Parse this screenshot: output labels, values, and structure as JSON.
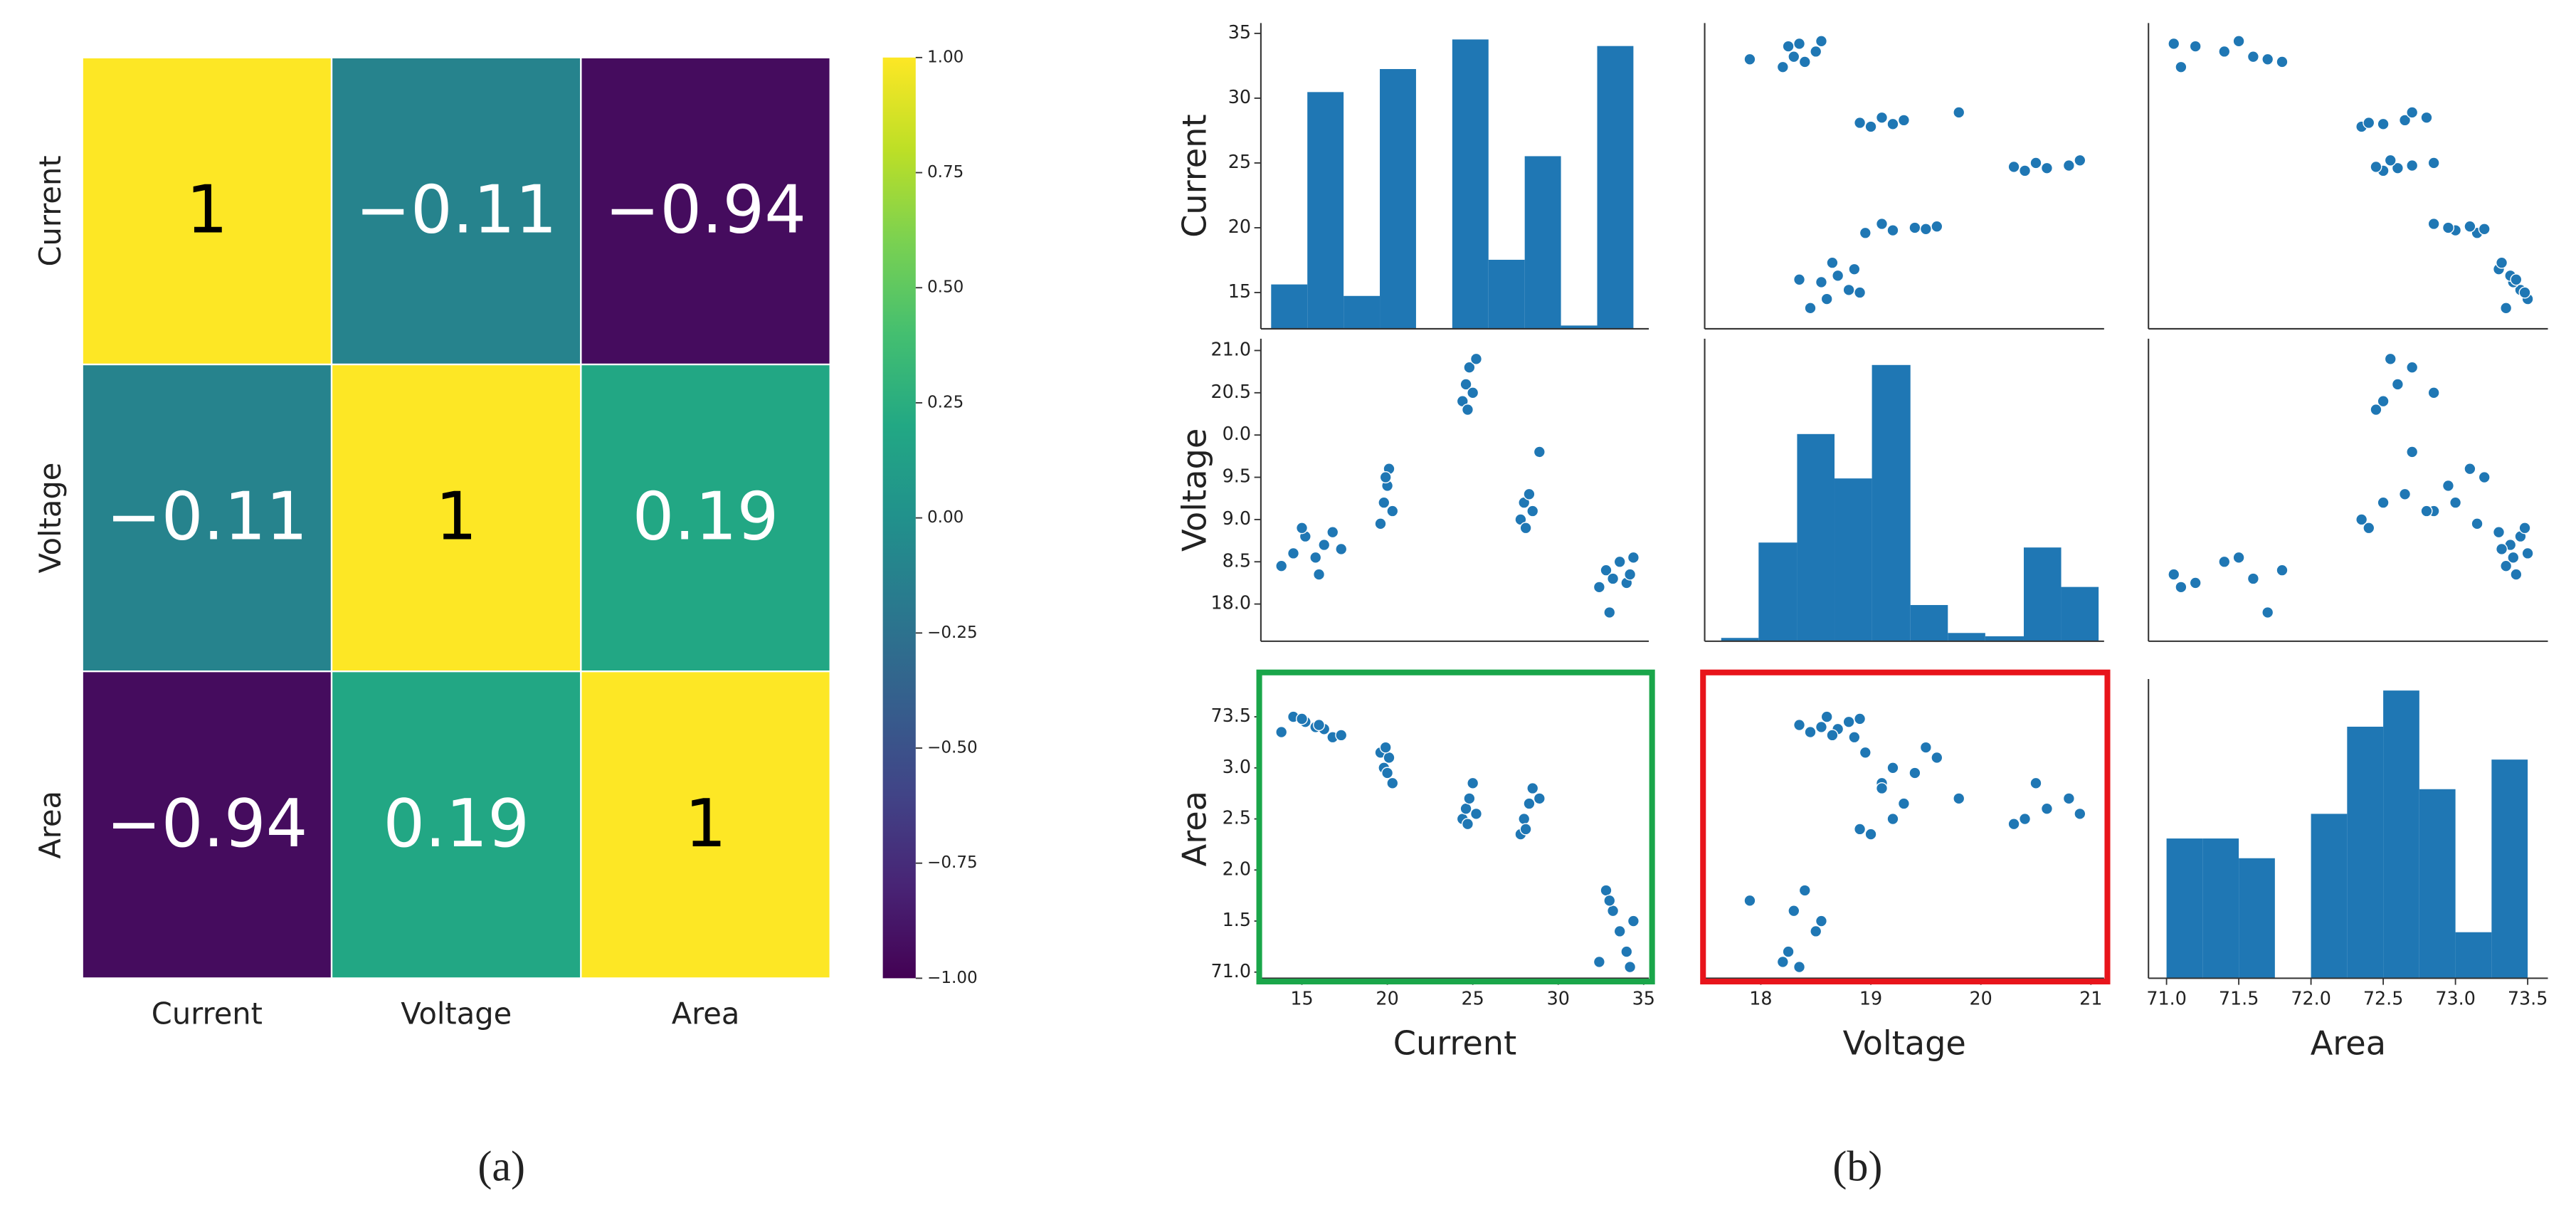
{
  "chart_data": [
    {
      "type": "heatmap",
      "x_categories": [
        "Current",
        "Voltage",
        "Area"
      ],
      "y_categories": [
        "Current",
        "Voltage",
        "Area"
      ],
      "values": [
        [
          1,
          -0.11,
          -0.94
        ],
        [
          -0.11,
          1,
          0.19
        ],
        [
          -0.94,
          0.19,
          1
        ]
      ],
      "value_labels": [
        [
          "1",
          "−0.11",
          "−0.94"
        ],
        [
          "−0.11",
          "1",
          "0.19"
        ],
        [
          "−0.94",
          "0.19",
          "1"
        ]
      ],
      "colormap": "viridis",
      "clim": [
        -1,
        1
      ],
      "cticks": [
        {
          "value": 1,
          "label": "1.00"
        },
        {
          "value": 0.75,
          "label": "0.75"
        },
        {
          "value": 0.5,
          "label": "0.50"
        },
        {
          "value": 0.25,
          "label": "0.25"
        },
        {
          "value": 0,
          "label": "0.00"
        },
        {
          "value": -0.25,
          "label": "−0.25"
        },
        {
          "value": -0.5,
          "label": "−0.50"
        },
        {
          "value": -0.75,
          "label": "−0.75"
        },
        {
          "value": -1,
          "label": "−1.00"
        }
      ],
      "caption": "(a)"
    },
    {
      "type": "pairplot",
      "variables": [
        "Current",
        "Voltage",
        "Area"
      ],
      "color": "#1f77b4",
      "columns": [
        [
          13.8,
          14.5,
          15.2,
          15.8,
          16.3,
          16.8,
          17.3,
          15.0,
          16.0,
          19.6,
          19.8,
          20.0,
          20.1,
          20.3,
          19.9,
          24.4,
          24.6,
          24.8,
          25.0,
          25.2,
          24.7,
          27.8,
          28.0,
          28.3,
          28.5,
          28.1,
          28.9,
          32.4,
          32.8,
          33.2,
          33.6,
          34.0,
          34.4,
          33.0,
          34.2
        ],
        [
          18.45,
          18.6,
          18.8,
          18.55,
          18.7,
          18.85,
          18.65,
          18.9,
          18.35,
          18.95,
          19.2,
          19.4,
          19.6,
          19.1,
          19.5,
          20.4,
          20.6,
          20.8,
          20.5,
          20.9,
          20.3,
          19.0,
          19.2,
          19.3,
          19.1,
          18.9,
          19.8,
          18.2,
          18.4,
          18.3,
          18.5,
          18.25,
          18.55,
          17.9,
          18.35
        ],
        [
          73.35,
          73.5,
          73.45,
          73.4,
          73.38,
          73.3,
          73.32,
          73.48,
          73.42,
          73.15,
          73.0,
          72.95,
          73.1,
          72.85,
          73.2,
          72.5,
          72.6,
          72.7,
          72.85,
          72.55,
          72.45,
          72.35,
          72.5,
          72.65,
          72.8,
          72.4,
          72.7,
          71.1,
          71.8,
          71.6,
          71.4,
          71.2,
          71.5,
          71.7,
          71.05
        ]
      ],
      "axes": [
        {
          "xlim": [
            12.6,
            35.3
          ],
          "xticks": [
            15,
            20,
            25,
            30,
            35
          ],
          "ylim": [
            12.2,
            35.8
          ],
          "yticks": [
            15,
            20,
            25,
            30,
            35
          ]
        },
        {
          "xlim": [
            17.49,
            21.12
          ],
          "xticks": [
            18,
            19,
            20,
            21
          ],
          "ylim": [
            17.56,
            21.14
          ],
          "yticks": [
            {
              "value": 21,
              "label": "21.0"
            },
            20.5,
            {
              "value": 20,
              "label": "0.0"
            },
            {
              "value": 19.5,
              "label": "9.5"
            },
            {
              "value": 19,
              "label": "9.0"
            },
            {
              "value": 18.5,
              "label": "8.5"
            },
            {
              "value": 18,
              "label": "18.0"
            }
          ]
        },
        {
          "xlim": [
            70.875,
            73.64
          ],
          "xticks": [
            {
              "value": 71,
              "label": "71.0"
            },
            71.5,
            {
              "value": 72,
              "label": "72.0"
            },
            72.5,
            {
              "value": 73,
              "label": "73.0"
            },
            73.5
          ],
          "ylim": [
            70.94,
            73.87
          ],
          "yticks": [
            73.5,
            {
              "value": 73,
              "label": "3.0"
            },
            {
              "value": 72.5,
              "label": "2.5"
            },
            {
              "value": 72,
              "label": "2.0"
            },
            {
              "value": 71.5,
              "label": "1.5"
            },
            {
              "value": 71,
              "label": "71.0"
            }
          ]
        }
      ],
      "histograms": [
        {
          "bins": [
            13.2,
            15.32,
            17.44,
            19.56,
            21.68,
            23.8,
            25.92,
            28.04,
            30.16,
            32.28,
            34.4
          ],
          "counts": [
            27,
            144,
            20,
            158,
            0,
            176,
            42,
            105,
            2,
            172
          ],
          "ylim": [
            0,
            186
          ]
        },
        {
          "bins": [
            17.64,
            17.98,
            18.33,
            18.67,
            19.01,
            19.36,
            19.7,
            20.04,
            20.39,
            20.73,
            21.07
          ],
          "counts": [
            2,
            60,
            126,
            99,
            168,
            22,
            5,
            3,
            57,
            33
          ],
          "ylim": [
            0,
            184
          ]
        },
        {
          "bins": [
            71.0,
            71.25,
            71.5,
            71.75,
            72.0,
            72.25,
            72.5,
            72.75,
            73.0,
            73.25,
            73.5
          ],
          "counts": [
            85,
            85,
            73,
            0,
            100,
            153,
            175,
            115,
            28,
            133
          ],
          "ylim": [
            0,
            182
          ]
        }
      ],
      "highlight": [
        {
          "row": 2,
          "col": 0,
          "color": "#1aa64a"
        },
        {
          "row": 2,
          "col": 1,
          "color": "#e8141b"
        }
      ],
      "caption": "(b)"
    }
  ]
}
